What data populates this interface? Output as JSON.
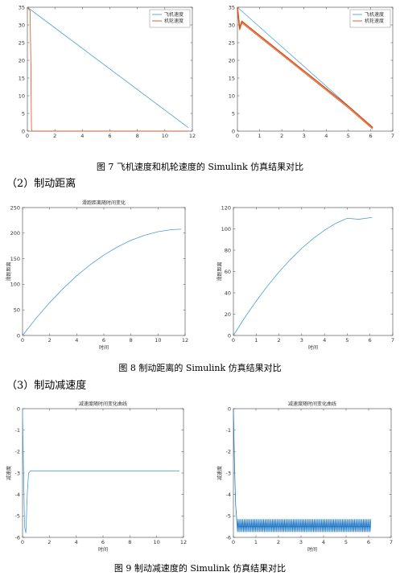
{
  "captions": {
    "fig7": "图 7  飞机速度和机轮速度的 Simulink 仿真结果对比",
    "fig8": "图 8  制动距离的 Simulink 仿真结果对比",
    "fig9": "图 9  制动减速度的 Simulink 仿真结果对比"
  },
  "sections": {
    "s2": "（2）制动距离",
    "s3": "（3）制动减速度"
  },
  "chart_data": [
    {
      "id": "fig7-left",
      "type": "line",
      "title": "",
      "xlabel": "",
      "ylabel": "",
      "xlim": [
        0,
        12
      ],
      "ylim": [
        0,
        35
      ],
      "xticks": [
        0,
        2,
        4,
        6,
        8,
        10,
        12
      ],
      "yticks": [
        0,
        5,
        10,
        15,
        20,
        25,
        30,
        35
      ],
      "legend": "top-right",
      "series": [
        {
          "name": "飞机速度",
          "color": "#4a9fd8",
          "x": [
            0,
            11.7
          ],
          "y": [
            35,
            1
          ]
        },
        {
          "name": "机轮速度",
          "color": "#d95319",
          "x": [
            0,
            0.1,
            0.2,
            0.25,
            0.3,
            0.35,
            11.7
          ],
          "y": [
            35,
            34.5,
            34,
            20,
            0.5,
            0,
            0
          ]
        }
      ]
    },
    {
      "id": "fig7-right",
      "type": "line",
      "title": "",
      "xlabel": "",
      "ylabel": "",
      "xlim": [
        0,
        7
      ],
      "ylim": [
        0,
        35
      ],
      "xticks": [
        0,
        1,
        2,
        3,
        4,
        5,
        6,
        7
      ],
      "yticks": [
        0,
        5,
        10,
        15,
        20,
        25,
        30,
        35
      ],
      "legend": "top-right",
      "series": [
        {
          "name": "飞机速度",
          "color": "#4a9fd8",
          "x": [
            0,
            6.1
          ],
          "y": [
            35,
            1
          ]
        },
        {
          "name": "机轮速度",
          "color": "#d95319",
          "x": [
            0,
            0.1,
            0.2,
            0.5,
            1,
            2,
            3,
            4,
            5,
            6.1
          ],
          "y": [
            35,
            29,
            31,
            29.5,
            27,
            22,
            17,
            12,
            7,
            1
          ]
        }
      ]
    },
    {
      "id": "fig8-left",
      "type": "line",
      "title": "滑跑距离随时间变化",
      "xlabel": "时间",
      "ylabel": "滑跑距离",
      "xlim": [
        0,
        12
      ],
      "ylim": [
        0,
        250
      ],
      "xticks": [
        0,
        2,
        4,
        6,
        8,
        10,
        12
      ],
      "yticks": [
        0,
        50,
        100,
        150,
        200,
        250
      ],
      "series": [
        {
          "name": "",
          "color": "#4a9fd8",
          "x": [
            0,
            1,
            2,
            3,
            4,
            5,
            6,
            7,
            8,
            9,
            10,
            11,
            11.7
          ],
          "y": [
            0,
            33.6,
            64.2,
            91.9,
            116.6,
            138.3,
            157.1,
            173.0,
            185.9,
            195.8,
            202.8,
            206.8,
            207.8
          ]
        }
      ]
    },
    {
      "id": "fig8-right",
      "type": "line",
      "title": "",
      "xlabel": "时间",
      "ylabel": "滑跑距离",
      "xlim": [
        0,
        7
      ],
      "ylim": [
        0,
        120
      ],
      "xticks": [
        0,
        1,
        2,
        3,
        4,
        5,
        6,
        7
      ],
      "yticks": [
        0,
        20,
        40,
        60,
        80,
        100,
        120
      ],
      "series": [
        {
          "name": "",
          "color": "#4a9fd8",
          "x": [
            0,
            0.5,
            1,
            1.5,
            2,
            2.5,
            3,
            3.5,
            4,
            4.5,
            5,
            5.5,
            6,
            6.1
          ],
          "y": [
            0,
            16.8,
            32.2,
            46.5,
            59.5,
            71.2,
            81.7,
            90.8,
            98.7,
            105.2,
            110.0,
            109.0,
            110.5,
            110.5
          ]
        }
      ]
    },
    {
      "id": "fig9-left",
      "type": "line",
      "title": "减速度随时间变化曲线",
      "xlabel": "时间",
      "ylabel": "减速度",
      "xlim": [
        0,
        12
      ],
      "ylim": [
        -6,
        0
      ],
      "xticks": [
        0,
        2,
        4,
        6,
        8,
        10,
        12
      ],
      "yticks": [
        -6,
        -5,
        -4,
        -3,
        -2,
        -1,
        0
      ],
      "series": [
        {
          "name": "",
          "color": "#4a9fd8",
          "x": [
            0,
            0.05,
            0.15,
            0.25,
            0.35,
            0.45,
            0.6,
            11.7
          ],
          "y": [
            0,
            -2,
            -5.5,
            -5.8,
            -4,
            -3,
            -2.9,
            -2.9
          ]
        }
      ]
    },
    {
      "id": "fig9-right",
      "type": "line",
      "title": "减速度随时间变化曲线",
      "xlabel": "时间",
      "ylabel": "减速度",
      "xlim": [
        0,
        7
      ],
      "ylim": [
        -6,
        0
      ],
      "xticks": [
        0,
        1,
        2,
        3,
        4,
        5,
        6,
        7
      ],
      "yticks": [
        -6,
        -5,
        -4,
        -3,
        -2,
        -1,
        0
      ],
      "series": [
        {
          "name": "",
          "color": "#1f77c4",
          "x": [
            0,
            0.05,
            0.1,
            0.15,
            0.2,
            6.1
          ],
          "y": [
            0,
            -2.7,
            -4.5,
            -5.2,
            -5.5,
            -5.5
          ],
          "band": {
            "x_start": 0.15,
            "x_end": 6.1,
            "low": -5.75,
            "high": -5.15
          }
        }
      ]
    }
  ]
}
